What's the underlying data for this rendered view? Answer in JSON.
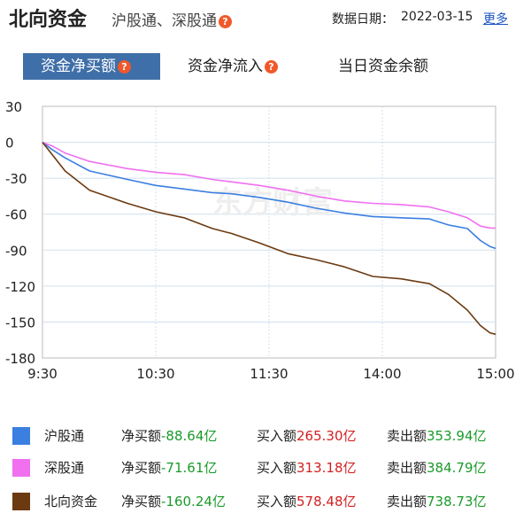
{
  "header": {
    "title": "北向资金",
    "subtitle": "沪股通、深股通",
    "help_icon": "question-icon",
    "date_label": "数据日期：",
    "date_value": "2022-03-15",
    "more_link": "更多"
  },
  "tabs": [
    {
      "label": "资金净买额",
      "active": true
    },
    {
      "label": "资金净流入",
      "active": false
    },
    {
      "label": "当日资金余额",
      "active": false
    }
  ],
  "watermark": "东方财富",
  "chart_data": {
    "type": "line",
    "x_ticks": [
      "9:30",
      "10:30",
      "11:30",
      "14:00",
      "15:00"
    ],
    "y_ticks": [
      "30",
      "0",
      "-30",
      "-60",
      "-90",
      "-120",
      "-150",
      "-180"
    ],
    "ylim": [
      -180,
      30
    ],
    "grid": true,
    "series": [
      {
        "name": "沪股通",
        "color": "#3b7fe0",
        "points": [
          [
            0,
            0
          ],
          [
            5,
            -6
          ],
          [
            12,
            -13
          ],
          [
            25,
            -24
          ],
          [
            45,
            -31
          ],
          [
            60,
            -36
          ],
          [
            75,
            -39
          ],
          [
            90,
            -42
          ],
          [
            100,
            -43
          ],
          [
            115,
            -46
          ],
          [
            130,
            -50
          ],
          [
            145,
            -55
          ],
          [
            160,
            -59
          ],
          [
            175,
            -62
          ],
          [
            190,
            -63
          ],
          [
            205,
            -64
          ],
          [
            215,
            -69
          ],
          [
            225,
            -72
          ],
          [
            232,
            -82
          ],
          [
            237,
            -87
          ],
          [
            240,
            -88.64
          ]
        ]
      },
      {
        "name": "深股通",
        "color": "#f070f0",
        "points": [
          [
            0,
            0
          ],
          [
            5,
            -3
          ],
          [
            12,
            -9
          ],
          [
            25,
            -16
          ],
          [
            45,
            -22
          ],
          [
            60,
            -25
          ],
          [
            75,
            -27
          ],
          [
            90,
            -31
          ],
          [
            100,
            -33
          ],
          [
            115,
            -36
          ],
          [
            130,
            -40
          ],
          [
            145,
            -45
          ],
          [
            160,
            -49
          ],
          [
            175,
            -51
          ],
          [
            190,
            -52
          ],
          [
            205,
            -54
          ],
          [
            215,
            -58
          ],
          [
            225,
            -63
          ],
          [
            232,
            -70
          ],
          [
            237,
            -71.5
          ],
          [
            240,
            -71.61
          ]
        ]
      },
      {
        "name": "北向资金",
        "color": "#6b3a10",
        "points": [
          [
            0,
            0
          ],
          [
            5,
            -10
          ],
          [
            12,
            -24
          ],
          [
            25,
            -40
          ],
          [
            45,
            -51
          ],
          [
            60,
            -58
          ],
          [
            75,
            -63
          ],
          [
            90,
            -72
          ],
          [
            100,
            -76
          ],
          [
            115,
            -84
          ],
          [
            130,
            -93
          ],
          [
            145,
            -98
          ],
          [
            160,
            -104
          ],
          [
            175,
            -112
          ],
          [
            190,
            -114
          ],
          [
            205,
            -118
          ],
          [
            215,
            -127
          ],
          [
            225,
            -140
          ],
          [
            232,
            -153
          ],
          [
            237,
            -159
          ],
          [
            240,
            -160.24
          ]
        ]
      }
    ]
  },
  "legend": [
    {
      "name": "沪股通",
      "color": "#3b7fe0",
      "net_label": "净买额",
      "net_value": "-88.64亿",
      "buy_label": "买入额",
      "buy_value": "265.30亿",
      "sell_label": "卖出额",
      "sell_value": "353.94亿"
    },
    {
      "name": "深股通",
      "color": "#f070f0",
      "net_label": "净买额",
      "net_value": "-71.61亿",
      "buy_label": "买入额",
      "buy_value": "313.18亿",
      "sell_label": "卖出额",
      "sell_value": "384.79亿"
    },
    {
      "name": "北向资金",
      "color": "#6b3a10",
      "net_label": "净买额",
      "net_value": "-160.24亿",
      "buy_label": "买入额",
      "buy_value": "578.48亿",
      "sell_label": "卖出额",
      "sell_value": "738.73亿"
    }
  ]
}
